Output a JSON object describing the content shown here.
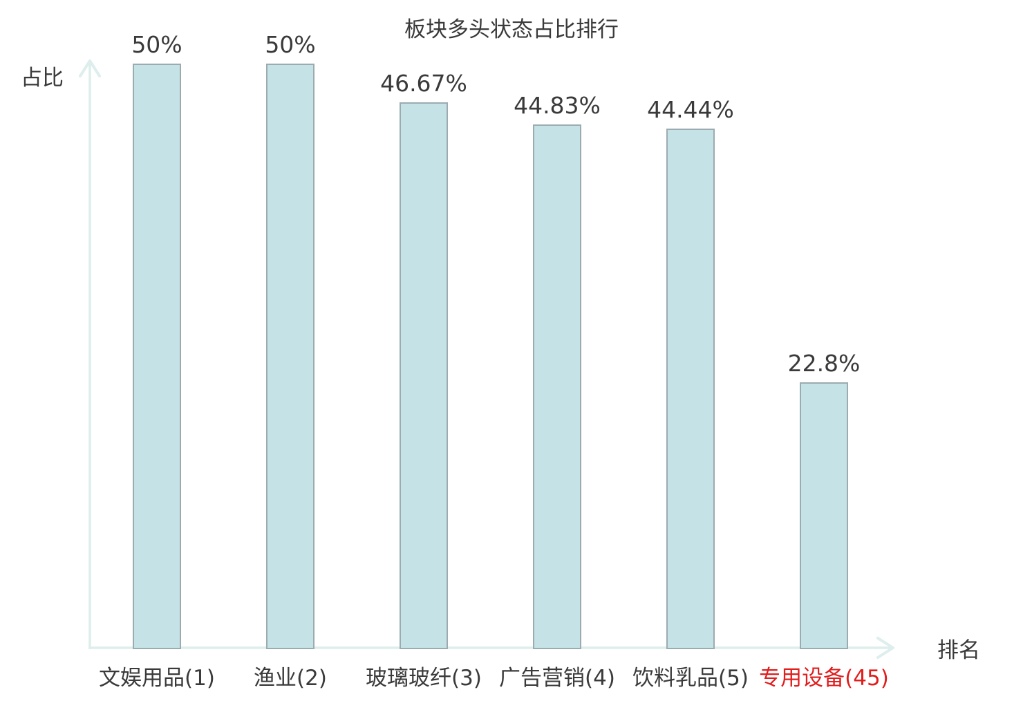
{
  "chart_data": {
    "type": "bar",
    "title": "板块多头状态占比排行",
    "ylabel": "占比",
    "xlabel": "排名",
    "categories": [
      "文娱用品(1)",
      "渔业(2)",
      "玻璃玻纤(3)",
      "广告营销(4)",
      "饮料乳品(5)",
      "专用设备(45)"
    ],
    "ranks": [
      1,
      2,
      3,
      4,
      5,
      45
    ],
    "values": [
      50,
      50,
      46.67,
      44.83,
      44.44,
      22.8
    ],
    "value_labels": [
      "50%",
      "50%",
      "46.67%",
      "44.83%",
      "44.44%",
      "22.8%"
    ],
    "category_colors": [
      "#3a3a3a",
      "#3a3a3a",
      "#3a3a3a",
      "#3a3a3a",
      "#3a3a3a",
      "#e11d1d"
    ],
    "highlighted_category": "专用设备(45)",
    "ylim": [
      0,
      52
    ],
    "grid": false,
    "legend": "none",
    "colors": {
      "bar_fill": "#c5e3e6",
      "bar_border": "#9cabaf",
      "axis": "#ddeeec",
      "text": "#3a3a3a",
      "highlight": "#e11d1d",
      "background": "#ffffff"
    }
  }
}
